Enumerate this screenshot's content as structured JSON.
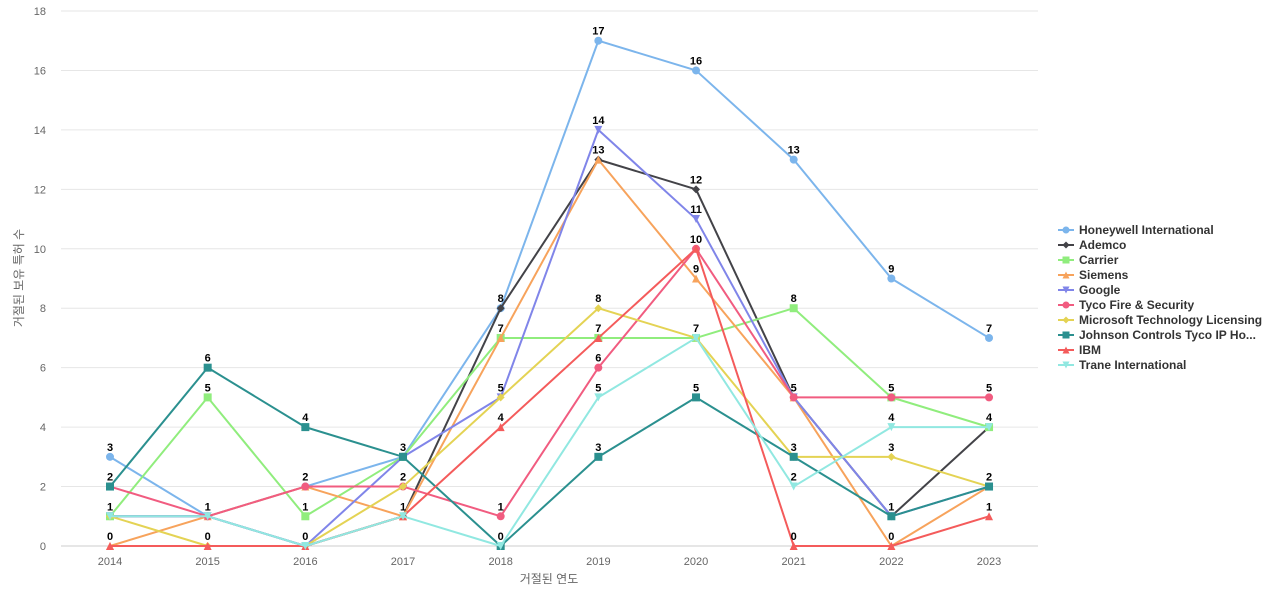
{
  "chart_data": {
    "type": "line",
    "xlabel": "거절된 연도",
    "ylabel": "거절된 보유 특허 수",
    "x": [
      "2014",
      "2015",
      "2016",
      "2017",
      "2018",
      "2019",
      "2020",
      "2021",
      "2022",
      "2023"
    ],
    "ylim": [
      0,
      18
    ],
    "yticks": [
      0,
      2,
      4,
      6,
      8,
      10,
      12,
      14,
      16,
      18
    ],
    "grid": true,
    "legend_position": "right",
    "series": [
      {
        "name": "Honeywell International",
        "color": "#7cb5ec",
        "marker": "circle",
        "values": [
          3,
          1,
          2,
          3,
          8,
          17,
          16,
          13,
          9,
          7
        ]
      },
      {
        "name": "Ademco",
        "color": "#434348",
        "marker": "diamond",
        "values": [
          1,
          1,
          0,
          1,
          8,
          13,
          12,
          5,
          1,
          4
        ]
      },
      {
        "name": "Carrier",
        "color": "#90ed7d",
        "marker": "square",
        "values": [
          1,
          5,
          1,
          3,
          7,
          7,
          7,
          8,
          5,
          4
        ]
      },
      {
        "name": "Siemens",
        "color": "#f7a35c",
        "marker": "triangle",
        "values": [
          0,
          1,
          2,
          1,
          7,
          13,
          9,
          5,
          0,
          2
        ]
      },
      {
        "name": "Google",
        "color": "#8085e9",
        "marker": "triangle-down",
        "values": [
          1,
          1,
          0,
          3,
          5,
          14,
          11,
          5,
          1,
          2
        ]
      },
      {
        "name": "Tyco Fire & Security",
        "color": "#f15c80",
        "marker": "circle",
        "values": [
          2,
          1,
          2,
          2,
          1,
          6,
          10,
          5,
          5,
          5
        ]
      },
      {
        "name": "Microsoft Technology Licensing",
        "color": "#e4d354",
        "marker": "diamond",
        "values": [
          1,
          0,
          0,
          2,
          5,
          8,
          7,
          3,
          3,
          2
        ]
      },
      {
        "name": "Johnson Controls Tyco IP Ho...",
        "color": "#2b908f",
        "marker": "square",
        "values": [
          2,
          6,
          4,
          3,
          0,
          3,
          5,
          3,
          1,
          2
        ]
      },
      {
        "name": "IBM",
        "color": "#f45b5b",
        "marker": "triangle",
        "values": [
          0,
          0,
          0,
          1,
          4,
          7,
          10,
          0,
          0,
          1
        ]
      },
      {
        "name": "Trane International",
        "color": "#91e8e1",
        "marker": "triangle-down",
        "values": [
          1,
          1,
          0,
          1,
          0,
          5,
          7,
          2,
          4,
          4
        ]
      }
    ],
    "data_labels": [
      {
        "x": "2014",
        "y": 3,
        "text": "3"
      },
      {
        "x": "2014",
        "y": 2,
        "text": "2"
      },
      {
        "x": "2014",
        "y": 1,
        "text": "1"
      },
      {
        "x": "2014",
        "y": 0,
        "text": "0"
      },
      {
        "x": "2015",
        "y": 6,
        "text": "6"
      },
      {
        "x": "2015",
        "y": 5,
        "text": "5"
      },
      {
        "x": "2015",
        "y": 1,
        "text": "1"
      },
      {
        "x": "2015",
        "y": 0,
        "text": "0"
      },
      {
        "x": "2016",
        "y": 4,
        "text": "4"
      },
      {
        "x": "2016",
        "y": 2,
        "text": "2"
      },
      {
        "x": "2016",
        "y": 1,
        "text": "1"
      },
      {
        "x": "2016",
        "y": 0,
        "text": "0"
      },
      {
        "x": "2017",
        "y": 3,
        "text": "3"
      },
      {
        "x": "2017",
        "y": 2,
        "text": "2"
      },
      {
        "x": "2017",
        "y": 1,
        "text": "1"
      },
      {
        "x": "2018",
        "y": 8,
        "text": "8"
      },
      {
        "x": "2018",
        "y": 7,
        "text": "7"
      },
      {
        "x": "2018",
        "y": 5,
        "text": "5"
      },
      {
        "x": "2018",
        "y": 4,
        "text": "4"
      },
      {
        "x": "2018",
        "y": 1,
        "text": "1"
      },
      {
        "x": "2018",
        "y": 0,
        "text": "0"
      },
      {
        "x": "2019",
        "y": 17,
        "text": "17"
      },
      {
        "x": "2019",
        "y": 14,
        "text": "14"
      },
      {
        "x": "2019",
        "y": 13,
        "text": "13"
      },
      {
        "x": "2019",
        "y": 8,
        "text": "8"
      },
      {
        "x": "2019",
        "y": 7,
        "text": "7"
      },
      {
        "x": "2019",
        "y": 6,
        "text": "6"
      },
      {
        "x": "2019",
        "y": 5,
        "text": "5"
      },
      {
        "x": "2019",
        "y": 3,
        "text": "3"
      },
      {
        "x": "2020",
        "y": 16,
        "text": "16"
      },
      {
        "x": "2020",
        "y": 12,
        "text": "12"
      },
      {
        "x": "2020",
        "y": 11,
        "text": "11"
      },
      {
        "x": "2020",
        "y": 10,
        "text": "10"
      },
      {
        "x": "2020",
        "y": 9,
        "text": "9"
      },
      {
        "x": "2020",
        "y": 7,
        "text": "7"
      },
      {
        "x": "2020",
        "y": 5,
        "text": "5"
      },
      {
        "x": "2021",
        "y": 13,
        "text": "13"
      },
      {
        "x": "2021",
        "y": 8,
        "text": "8"
      },
      {
        "x": "2021",
        "y": 5,
        "text": "5"
      },
      {
        "x": "2021",
        "y": 3,
        "text": "3"
      },
      {
        "x": "2021",
        "y": 2,
        "text": "2"
      },
      {
        "x": "2021",
        "y": 0,
        "text": "0"
      },
      {
        "x": "2022",
        "y": 9,
        "text": "9"
      },
      {
        "x": "2022",
        "y": 5,
        "text": "5"
      },
      {
        "x": "2022",
        "y": 4,
        "text": "4"
      },
      {
        "x": "2022",
        "y": 3,
        "text": "3"
      },
      {
        "x": "2022",
        "y": 1,
        "text": "1"
      },
      {
        "x": "2022",
        "y": 0,
        "text": "0"
      },
      {
        "x": "2023",
        "y": 7,
        "text": "7"
      },
      {
        "x": "2023",
        "y": 5,
        "text": "5"
      },
      {
        "x": "2023",
        "y": 4,
        "text": "4"
      },
      {
        "x": "2023",
        "y": 2,
        "text": "2"
      },
      {
        "x": "2023",
        "y": 1,
        "text": "1"
      }
    ]
  }
}
